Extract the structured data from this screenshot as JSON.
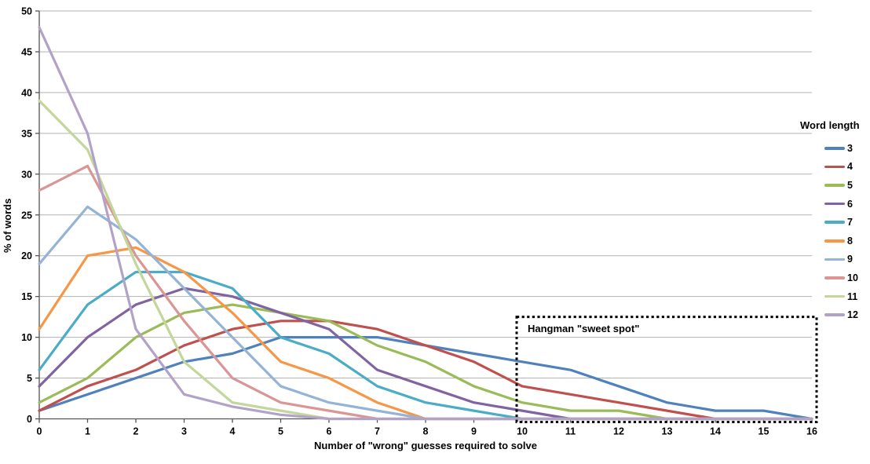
{
  "chart_data": {
    "type": "line",
    "title": "",
    "xlabel": "Number of \"wrong\" guesses required to solve",
    "ylabel": "% of words",
    "legend_title": "Word length",
    "legend_position": "right",
    "grid": "horizontal-only",
    "xlim": [
      0,
      16
    ],
    "ylim": [
      0,
      50
    ],
    "xticks": [
      0,
      1,
      2,
      3,
      4,
      5,
      6,
      7,
      8,
      9,
      10,
      11,
      12,
      13,
      14,
      15,
      16
    ],
    "yticks": [
      0,
      5,
      10,
      15,
      20,
      25,
      30,
      35,
      40,
      45,
      50
    ],
    "x": [
      0,
      1,
      2,
      3,
      4,
      5,
      6,
      7,
      8,
      9,
      10,
      11,
      12,
      13,
      14,
      15,
      16
    ],
    "series": [
      {
        "name": "3",
        "color": "#4F81BD",
        "values": [
          1,
          3,
          5,
          7,
          8,
          10,
          10,
          10,
          9,
          8,
          7,
          6,
          4,
          2,
          1,
          1,
          0
        ]
      },
      {
        "name": "4",
        "color": "#C0504D",
        "values": [
          1,
          4,
          6,
          9,
          11,
          12,
          12,
          11,
          9,
          7,
          4,
          3,
          2,
          1,
          0,
          0,
          0
        ]
      },
      {
        "name": "5",
        "color": "#9BBB59",
        "values": [
          2,
          5,
          10,
          13,
          14,
          13,
          12,
          9,
          7,
          4,
          2,
          1,
          1,
          0,
          0,
          0,
          0
        ]
      },
      {
        "name": "6",
        "color": "#8064A2",
        "values": [
          4,
          10,
          14,
          16,
          15,
          13,
          11,
          6,
          4,
          2,
          1,
          0,
          0,
          0,
          0,
          0,
          0
        ]
      },
      {
        "name": "7",
        "color": "#4BACC6",
        "values": [
          6,
          14,
          18,
          18,
          16,
          10,
          8,
          4,
          2,
          1,
          0,
          0,
          0,
          0,
          0,
          0,
          0
        ]
      },
      {
        "name": "8",
        "color": "#F79646",
        "values": [
          11,
          20,
          21,
          18,
          13,
          7,
          5,
          2,
          0,
          0,
          0,
          0,
          0,
          0,
          0,
          0,
          0
        ]
      },
      {
        "name": "9",
        "color": "#95B3D7",
        "values": [
          19,
          26,
          22,
          16,
          10,
          4,
          2,
          1,
          0,
          0,
          0,
          0,
          0,
          0,
          0,
          0,
          0
        ]
      },
      {
        "name": "10",
        "color": "#D99694",
        "values": [
          28,
          31,
          20,
          12,
          5,
          2,
          1,
          0,
          0,
          0,
          0,
          0,
          0,
          0,
          0,
          0,
          0
        ]
      },
      {
        "name": "11",
        "color": "#C3D69B",
        "values": [
          39,
          33,
          19,
          7,
          2,
          1,
          0,
          0,
          0,
          0,
          0,
          0,
          0,
          0,
          0,
          0,
          0
        ]
      },
      {
        "name": "12",
        "color": "#B3A2C7",
        "values": [
          48,
          35,
          11,
          3,
          1.5,
          0.5,
          0,
          0,
          0,
          0,
          0,
          0,
          0,
          0,
          0,
          0,
          0
        ]
      }
    ],
    "annotation": {
      "label": "Hangman \"sweet spot\"",
      "x_range": [
        10,
        16
      ],
      "y_range": [
        0,
        12.5
      ],
      "border_style": "dotted",
      "border_color": "#000000"
    }
  },
  "colors": {
    "background": "#FFFFFF",
    "gridline": "#B3B3B3",
    "axis": "#555555",
    "text": "#000000"
  }
}
